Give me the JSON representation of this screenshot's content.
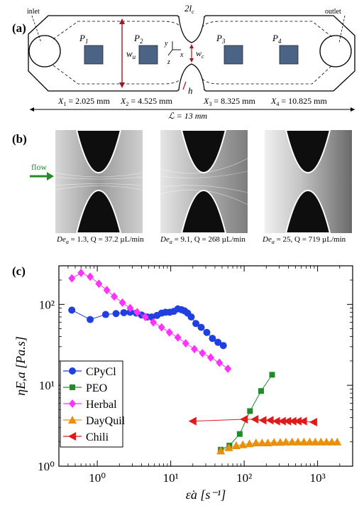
{
  "panel_a": {
    "label": "(a)",
    "inlet": "inlet",
    "outlet": "outlet",
    "width_label_main": "w",
    "width_label_sub": "u",
    "neck_label_main": "w",
    "neck_label_sub": "c",
    "length_label": "2l",
    "length_label_sub": "c",
    "depth_label": "h",
    "axis_x": "x",
    "axis_y": "y",
    "axis_z": "z",
    "sensors": [
      {
        "main": "P",
        "sub": "1"
      },
      {
        "main": "P",
        "sub": "2"
      },
      {
        "main": "P",
        "sub": "3"
      },
      {
        "main": "P",
        "sub": "4"
      }
    ],
    "positions": [
      {
        "main": "X",
        "sub": "1",
        "value": " = 2.025 mm"
      },
      {
        "main": "X",
        "sub": "2",
        "value": " = 4.525 mm"
      },
      {
        "main": "X",
        "sub": "3",
        "value": " = 8.325 mm"
      },
      {
        "main": "X",
        "sub": "4",
        "value": " = 10.825 mm"
      }
    ],
    "total_length": "ℒ = 13 mm"
  },
  "panel_b": {
    "label": "(b)",
    "flow_label": "flow",
    "captions": [
      {
        "de": "De",
        "sub": "a",
        "rest": " = 1.3, Q = 37.2 µL/min"
      },
      {
        "de": "De",
        "sub": "a",
        "rest": " = 9.1, Q = 268 µL/min"
      },
      {
        "de": "De",
        "sub": "a",
        "rest": " = 25, Q = 719 µL/min"
      }
    ]
  },
  "panel_c": {
    "label": "(c)"
  },
  "chart_data": {
    "type": "scatter",
    "xlabel": "ε̇a [s⁻¹]",
    "ylabel": "ηE,a [Pa.s]",
    "xscale": "log",
    "yscale": "log",
    "xlim": [
      0.3,
      3000
    ],
    "ylim": [
      1,
      300
    ],
    "x_ticks": [
      {
        "value": 1,
        "label": "10⁰"
      },
      {
        "value": 10,
        "label": "10¹"
      },
      {
        "value": 100,
        "label": "10²"
      },
      {
        "value": 1000,
        "label": "10³"
      }
    ],
    "y_ticks": [
      {
        "value": 1,
        "label": "10⁰"
      },
      {
        "value": 10,
        "label": "10¹"
      },
      {
        "value": 100,
        "label": "10²"
      }
    ],
    "legend_position": "bottom-left",
    "series": [
      {
        "name": "CPyCl",
        "color": "#1f3fe0",
        "marker": "circle",
        "x": [
          0.45,
          0.8,
          1.3,
          1.8,
          2.3,
          2.8,
          3.4,
          4.0,
          4.8,
          5.5,
          6.5,
          7.5,
          8.5,
          9.7,
          11,
          12.5,
          14,
          15.5,
          17,
          19,
          22,
          26,
          31,
          37,
          44,
          52
        ],
        "y": [
          85,
          65,
          75,
          77,
          79,
          80,
          78,
          74,
          70,
          70,
          73,
          78,
          80,
          80,
          82,
          88,
          86,
          83,
          78,
          70,
          58,
          52,
          45,
          38,
          34,
          31
        ]
      },
      {
        "name": "PEO",
        "color": "#1e8c2a",
        "marker": "square",
        "x": [
          48,
          63,
          87,
          120,
          170,
          240
        ],
        "y": [
          1.6,
          1.8,
          2.5,
          4.8,
          8.5,
          13.5
        ]
      },
      {
        "name": "Herbal",
        "color": "#ff33ff",
        "marker": "diamond",
        "x": [
          0.45,
          0.6,
          0.8,
          1.05,
          1.35,
          1.7,
          2.2,
          2.8,
          3.5,
          4.5,
          5.8,
          7.5,
          9.6,
          12.5,
          16,
          21,
          27,
          35,
          46,
          60
        ],
        "y": [
          210,
          245,
          220,
          180,
          150,
          125,
          105,
          90,
          80,
          70,
          60,
          52,
          45,
          39,
          33,
          28,
          25,
          22,
          19,
          16
        ]
      },
      {
        "name": "DayQuil",
        "color": "#e8900a",
        "marker": "triangle-up",
        "x": [
          48,
          62,
          78,
          96,
          118,
          145,
          175,
          210,
          255,
          310,
          370,
          450,
          540,
          650,
          780,
          930,
          1110,
          1320,
          1560,
          1850
        ],
        "y": [
          1.55,
          1.7,
          1.8,
          1.85,
          1.9,
          1.95,
          1.95,
          1.95,
          1.98,
          1.98,
          2.0,
          2.0,
          2.0,
          2.0,
          2.0,
          2.0,
          2.0,
          2.0,
          2.0,
          2.0
        ]
      },
      {
        "name": "Chili",
        "color": "#e01a1a",
        "marker": "triangle-left",
        "x": [
          20,
          100,
          140,
          180,
          225,
          275,
          330,
          390,
          460,
          540,
          640,
          880
        ],
        "y": [
          3.6,
          3.8,
          3.8,
          3.7,
          3.7,
          3.6,
          3.6,
          3.6,
          3.6,
          3.6,
          3.6,
          3.5
        ]
      }
    ]
  }
}
